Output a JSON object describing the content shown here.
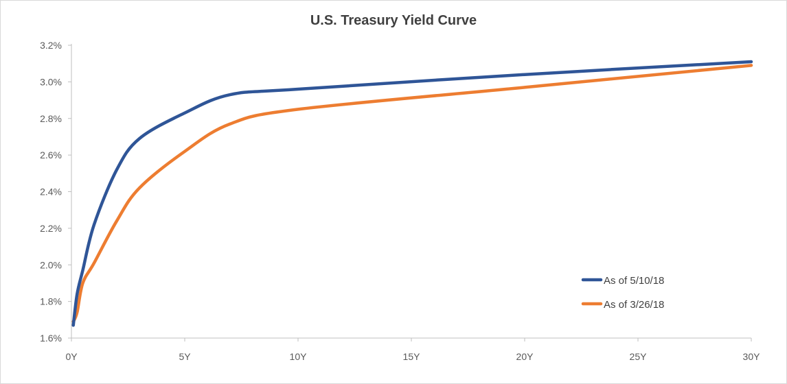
{
  "chart_data": {
    "type": "line",
    "title": "U.S. Treasury Yield Curve",
    "xlabel": "",
    "ylabel": "",
    "xlim": [
      0,
      30
    ],
    "ylim": [
      1.6,
      3.2
    ],
    "x_ticks": [
      "0Y",
      "5Y",
      "10Y",
      "15Y",
      "20Y",
      "25Y",
      "30Y"
    ],
    "x_tick_values": [
      0,
      5,
      10,
      15,
      20,
      25,
      30
    ],
    "y_ticks": [
      "1.6%",
      "1.8%",
      "2.0%",
      "2.2%",
      "2.4%",
      "2.6%",
      "2.8%",
      "3.0%",
      "3.2%"
    ],
    "y_tick_values": [
      1.6,
      1.8,
      2.0,
      2.2,
      2.4,
      2.6,
      2.8,
      3.0,
      3.2
    ],
    "grid": false,
    "legend_position": "bottom-right",
    "series": [
      {
        "name": "As of 5/10/18",
        "color": "#2F5597",
        "x": [
          0.083,
          0.25,
          0.5,
          1,
          2,
          3,
          5,
          7,
          10,
          20,
          30
        ],
        "y": [
          1.67,
          1.84,
          1.97,
          2.22,
          2.52,
          2.69,
          2.83,
          2.93,
          2.96,
          3.04,
          3.11
        ]
      },
      {
        "name": "As of 3/26/18",
        "color": "#ED7D31",
        "x": [
          0.083,
          0.25,
          0.5,
          1,
          2,
          3,
          5,
          7,
          10,
          20,
          30
        ],
        "y": [
          1.69,
          1.74,
          1.9,
          2.01,
          2.24,
          2.42,
          2.62,
          2.77,
          2.85,
          2.97,
          3.09
        ]
      }
    ]
  }
}
